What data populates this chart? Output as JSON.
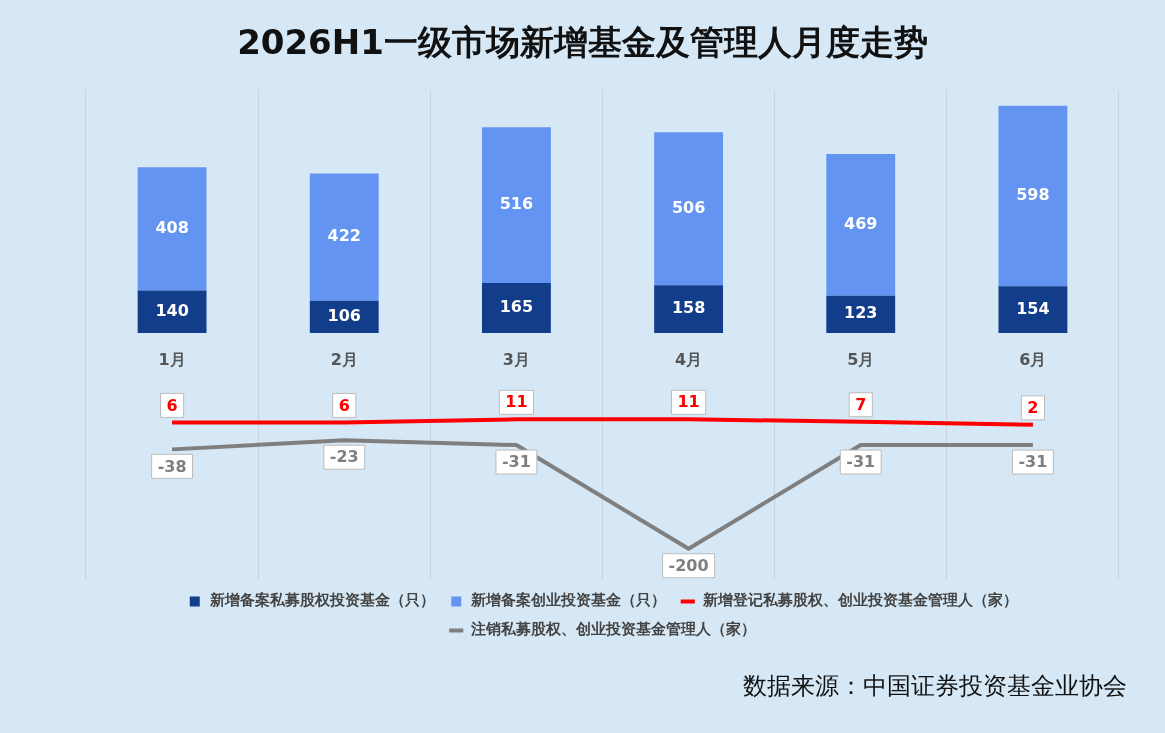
{
  "chart_data": {
    "type": "bar",
    "title": "2026H1一级市场新增基金及管理人月度走势",
    "categories": [
      "1月",
      "2月",
      "3月",
      "4月",
      "5月",
      "6月"
    ],
    "stacked": true,
    "series": [
      {
        "name": "新增备案私募股权投资基金（只）",
        "color": "#123d8a",
        "values": [
          140,
          106,
          165,
          158,
          123,
          154
        ]
      },
      {
        "name": "新增备案创业投资基金（只）",
        "color": "#6394f2",
        "values": [
          408,
          422,
          516,
          506,
          469,
          598
        ]
      },
      {
        "name": "新增登记私募股权、创业投资基金管理人（家）",
        "type": "line",
        "axis": "y2",
        "color": "#ff0000",
        "values": [
          6,
          6,
          11,
          11,
          7,
          2
        ]
      },
      {
        "name": "注销私募股权、创业投资基金管理人（家）",
        "type": "line",
        "axis": "y2",
        "color": "#7f7f7f",
        "values": [
          -38,
          -23,
          -31,
          -200,
          -31,
          -31
        ]
      }
    ],
    "ylim": [
      -818,
      804
    ],
    "y2lim": [
      -251,
      548
    ],
    "tick_labels": "x",
    "grid": "x",
    "legend": "bottom",
    "data_labels": true,
    "annotations": [
      "数据来源：中国证券投资基金业协会"
    ]
  }
}
